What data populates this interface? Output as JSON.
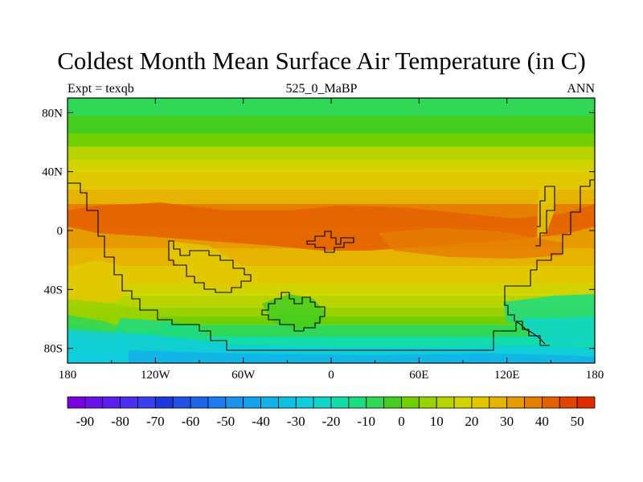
{
  "title": "Coldest Month Mean Surface Air Temperature (in C)",
  "left_label": "Expt = texqb",
  "center_label": "525_0_MaBP",
  "right_label": "ANN",
  "map": {
    "lon_range": [
      -180,
      180
    ],
    "lat_range": [
      -90,
      90
    ],
    "x_ticks": [
      {
        "value": -180,
        "label": "180"
      },
      {
        "value": -120,
        "label": "120W"
      },
      {
        "value": -60,
        "label": "60W"
      },
      {
        "value": 0,
        "label": "0"
      },
      {
        "value": 60,
        "label": "60E"
      },
      {
        "value": 120,
        "label": "120E"
      },
      {
        "value": 180,
        "label": "180"
      }
    ],
    "y_ticks": [
      {
        "value": 80,
        "label": "80N"
      },
      {
        "value": 40,
        "label": "40N"
      },
      {
        "value": 0,
        "label": "0"
      },
      {
        "value": -40,
        "label": "40S"
      },
      {
        "value": -80,
        "label": "80S"
      }
    ],
    "zonal_bands": [
      {
        "lat": [
          78,
          90
        ],
        "value": -10
      },
      {
        "lat": [
          66,
          78
        ],
        "value": -5
      },
      {
        "lat": [
          57,
          66
        ],
        "value": 0
      },
      {
        "lat": [
          48,
          57
        ],
        "value": 10
      },
      {
        "lat": [
          40,
          48
        ],
        "value": 15
      },
      {
        "lat": [
          28,
          40
        ],
        "value": 20
      },
      {
        "lat": [
          18,
          28
        ],
        "value": 25
      },
      {
        "lat": [
          2,
          18
        ],
        "value": 35
      },
      {
        "lat": [
          -12,
          2
        ],
        "value": 30
      },
      {
        "lat": [
          -24,
          -12
        ],
        "value": 25
      },
      {
        "lat": [
          -36,
          -24
        ],
        "value": 20
      },
      {
        "lat": [
          -44,
          -36
        ],
        "value": 15
      },
      {
        "lat": [
          -52,
          -44
        ],
        "value": 10
      },
      {
        "lat": [
          -58,
          -52
        ],
        "value": 5
      },
      {
        "lat": [
          -64,
          -58
        ],
        "value": 0
      },
      {
        "lat": [
          -72,
          -64
        ],
        "value": -10
      },
      {
        "lat": [
          -82,
          -72
        ],
        "value": -20
      },
      {
        "lat": [
          -90,
          -82
        ],
        "value": -25
      }
    ]
  },
  "colorbar": {
    "levels": [
      -95,
      -90,
      -85,
      -80,
      -75,
      -70,
      -65,
      -60,
      -55,
      -50,
      -45,
      -40,
      -35,
      -30,
      -25,
      -20,
      -15,
      -10,
      -5,
      0,
      5,
      10,
      15,
      20,
      25,
      30,
      35,
      40,
      45,
      50,
      55
    ],
    "colors": [
      "#7a00e0",
      "#6a10e8",
      "#5c1ef0",
      "#4a30f0",
      "#3a3ff0",
      "#1e38e0",
      "#2050e8",
      "#1b67e8",
      "#1c7cf0",
      "#1a92ee",
      "#15a2ea",
      "#12b2e8",
      "#0ec0e4",
      "#10ccdc",
      "#10d6c8",
      "#12dcaa",
      "#1cdc82",
      "#30d856",
      "#44cc20",
      "#72d000",
      "#9ad200",
      "#b8d400",
      "#d2d400",
      "#e2c800",
      "#e6b400",
      "#e69c00",
      "#e67e00",
      "#e46000",
      "#e04400",
      "#e02a00"
    ],
    "labels": [
      {
        "value": -90,
        "label": "-90"
      },
      {
        "value": -80,
        "label": "-80"
      },
      {
        "value": -70,
        "label": "-70"
      },
      {
        "value": -60,
        "label": "-60"
      },
      {
        "value": -50,
        "label": "-50"
      },
      {
        "value": -40,
        "label": "-40"
      },
      {
        "value": -30,
        "label": "-30"
      },
      {
        "value": -20,
        "label": "-20"
      },
      {
        "value": -10,
        "label": "-10"
      },
      {
        "value": 0,
        "label": "0"
      },
      {
        "value": 10,
        "label": "10"
      },
      {
        "value": 20,
        "label": "20"
      },
      {
        "value": 30,
        "label": "30"
      },
      {
        "value": 40,
        "label": "40"
      },
      {
        "value": 50,
        "label": "50"
      }
    ]
  }
}
